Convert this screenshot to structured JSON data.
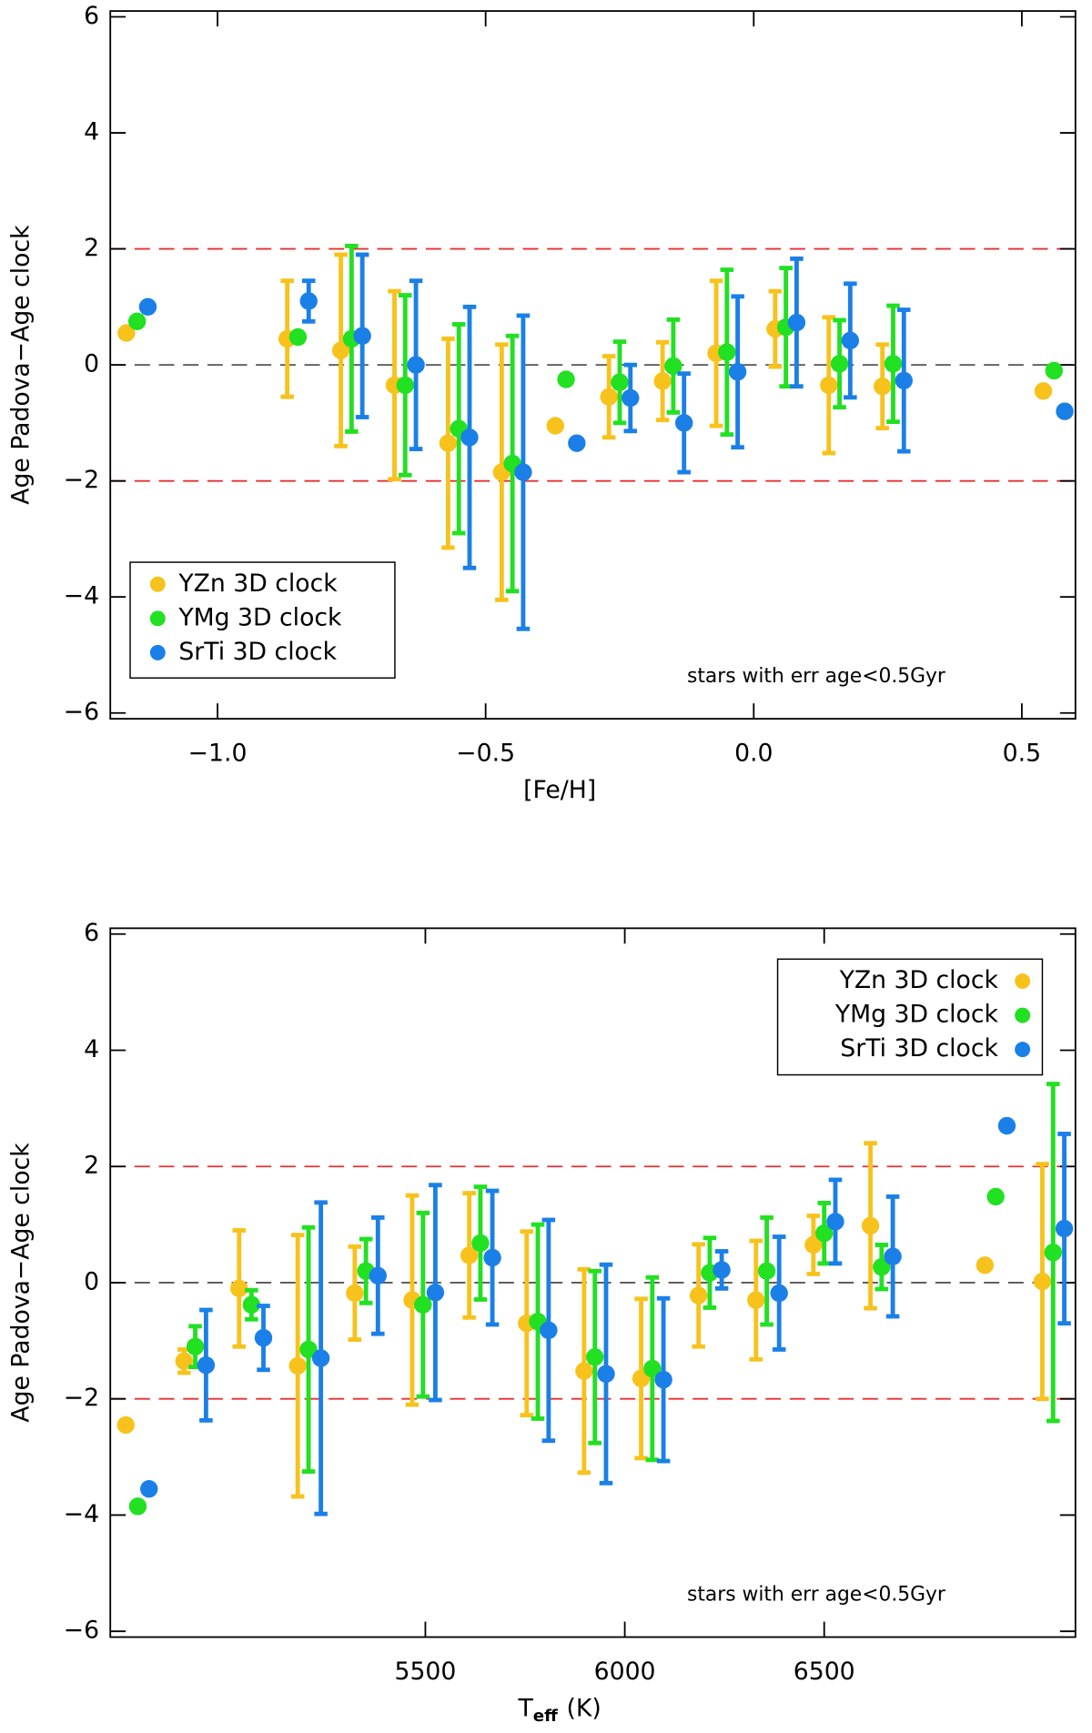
{
  "chart_data": [
    {
      "type": "scatter",
      "xlabel": "[Fe/H]",
      "ylabel": "Age Padova−Age clock",
      "annotation": "stars with err age<0.5Gyr",
      "xlim": [
        -1.2,
        0.6
      ],
      "ylim": [
        -6.1,
        6.1
      ],
      "xticks": [
        {
          "value": -1.0,
          "label": "−1.0"
        },
        {
          "value": -0.5,
          "label": "−0.5"
        },
        {
          "value": 0.0,
          "label": "0.0"
        },
        {
          "value": 0.5,
          "label": "0.5"
        }
      ],
      "yticks": [
        {
          "value": -6,
          "label": "−6"
        },
        {
          "value": -4,
          "label": "−4"
        },
        {
          "value": -2,
          "label": "−2"
        },
        0,
        2,
        4,
        6
      ],
      "hlines": [
        {
          "value": 0,
          "color": "#555555"
        },
        {
          "value": 2,
          "color": "#e83030"
        },
        {
          "value": -2,
          "color": "#e83030"
        }
      ],
      "legend": "lower left",
      "series": [
        {
          "name": "YZn 3D clock",
          "color": "#f8c21c",
          "x": [
            -1.17,
            -0.87,
            -0.77,
            -0.67,
            -0.57,
            -0.47,
            -0.37,
            -0.27,
            -0.17,
            -0.07,
            0.04,
            0.14,
            0.24,
            0.54
          ],
          "values": [
            0.55,
            0.45,
            0.25,
            -0.35,
            -1.35,
            -1.85,
            -1.05,
            -0.55,
            -0.28,
            0.2,
            0.62,
            -0.35,
            -0.37,
            -0.45
          ],
          "errors": [
            null,
            1.0,
            1.65,
            1.62,
            1.8,
            2.2,
            null,
            0.7,
            0.67,
            1.25,
            0.65,
            1.17,
            0.72,
            null
          ]
        },
        {
          "name": "YMg 3D clock",
          "color": "#22e022",
          "x": [
            -1.15,
            -0.85,
            -0.75,
            -0.65,
            -0.55,
            -0.45,
            -0.35,
            -0.25,
            -0.15,
            -0.05,
            0.06,
            0.16,
            0.26,
            0.56
          ],
          "values": [
            0.75,
            0.48,
            0.45,
            -0.35,
            -1.1,
            -1.7,
            -0.25,
            -0.3,
            -0.02,
            0.22,
            0.65,
            0.02,
            0.02,
            -0.1
          ],
          "errors": [
            null,
            null,
            1.6,
            1.55,
            1.8,
            2.2,
            null,
            0.7,
            0.8,
            1.42,
            1.02,
            0.75,
            1.0,
            null
          ]
        },
        {
          "name": "SrTi 3D clock",
          "color": "#1a80e8",
          "x": [
            -1.13,
            -0.83,
            -0.73,
            -0.63,
            -0.53,
            -0.43,
            -0.33,
            -0.23,
            -0.13,
            -0.03,
            0.08,
            0.18,
            0.28,
            0.58
          ],
          "values": [
            1.0,
            1.1,
            0.5,
            0.0,
            -1.25,
            -1.85,
            -1.35,
            -0.57,
            -1.0,
            -0.12,
            0.73,
            0.42,
            -0.27,
            -0.8
          ],
          "errors": [
            null,
            0.35,
            1.4,
            1.45,
            2.25,
            2.7,
            null,
            0.57,
            0.85,
            1.3,
            1.1,
            0.98,
            1.22,
            null
          ]
        }
      ]
    },
    {
      "type": "scatter",
      "xlabel": "T",
      "xlabel_sub": "eff",
      "xlabel_unit": "(K)",
      "ylabel": "Age Padova−Age clock",
      "annotation": "stars with err age<0.5Gyr",
      "xlim": [
        4710,
        7130
      ],
      "ylim": [
        -6.1,
        6.1
      ],
      "xticks": [
        5500,
        6000,
        6500
      ],
      "yticks": [
        {
          "value": -6,
          "label": "−6"
        },
        {
          "value": -4,
          "label": "−4"
        },
        {
          "value": -2,
          "label": "−2"
        },
        0,
        2,
        4,
        6
      ],
      "hlines": [
        {
          "value": 0,
          "color": "#555555"
        },
        {
          "value": 2,
          "color": "#e83030"
        },
        {
          "value": -2,
          "color": "#e83030"
        }
      ],
      "legend": "upper right",
      "series": [
        {
          "name": "YZn 3D clock",
          "color": "#f8c21c",
          "x": [
            4749,
            4895,
            5033,
            5180,
            5323,
            5467,
            5610,
            5754,
            5898,
            6041,
            6185,
            6329,
            6473,
            6616,
            6903,
            7047
          ],
          "values": [
            -2.45,
            -1.35,
            -0.1,
            -1.43,
            -0.18,
            -0.3,
            0.47,
            -0.7,
            -1.52,
            -1.65,
            -0.22,
            -0.3,
            0.65,
            0.98,
            0.3,
            0.02
          ],
          "errors": [
            null,
            0.2,
            1.0,
            2.25,
            0.8,
            1.8,
            1.07,
            1.58,
            1.75,
            1.37,
            0.88,
            1.02,
            0.5,
            1.42,
            null,
            2.02
          ]
        },
        {
          "name": "YMg 3D clock",
          "color": "#22e022",
          "x": [
            4779,
            4923,
            5064,
            5207,
            5351,
            5494,
            5638,
            5782,
            5925,
            6069,
            6213,
            6356,
            6500,
            6644,
            6930,
            7074
          ],
          "values": [
            -3.85,
            -1.1,
            -0.38,
            -1.15,
            0.2,
            -0.38,
            0.68,
            -0.67,
            -1.28,
            -1.48,
            0.17,
            0.2,
            0.85,
            0.27,
            1.48,
            0.52
          ],
          "errors": [
            null,
            0.35,
            0.25,
            2.1,
            0.55,
            1.58,
            0.97,
            1.67,
            1.48,
            1.57,
            0.6,
            0.92,
            0.52,
            0.38,
            null,
            2.9
          ]
        },
        {
          "name": "SrTi 3D clock",
          "color": "#1a80e8",
          "x": [
            4807,
            4950,
            5094,
            5238,
            5381,
            5525,
            5668,
            5809,
            5953,
            6097,
            6243,
            6387,
            6528,
            6672,
            6958,
            7102
          ],
          "values": [
            -3.55,
            -1.42,
            -0.95,
            -1.3,
            0.12,
            -0.17,
            0.43,
            -0.82,
            -1.57,
            -1.67,
            0.22,
            -0.18,
            1.05,
            0.45,
            2.7,
            0.93
          ],
          "errors": [
            null,
            0.95,
            0.55,
            2.68,
            1.0,
            1.85,
            1.15,
            1.9,
            1.88,
            1.4,
            0.32,
            0.97,
            0.72,
            1.03,
            null,
            1.63
          ]
        }
      ]
    }
  ]
}
